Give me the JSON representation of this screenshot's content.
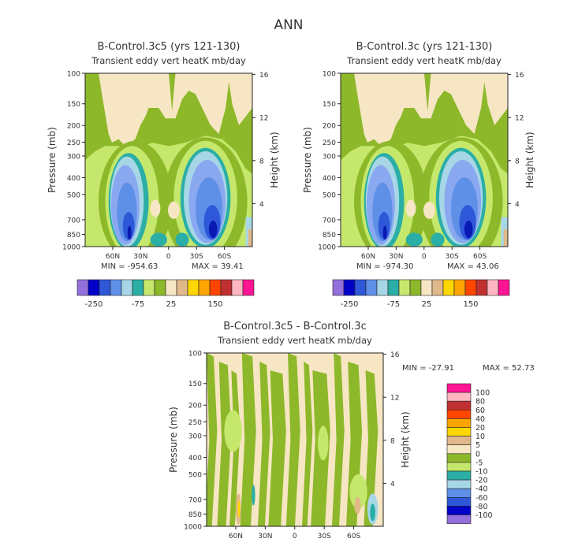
{
  "page_title": "ANN",
  "colors": {
    "olive": "#8db82a",
    "lightgreen": "#c5e86c",
    "cream": "#f7e6c4",
    "teal": "#2aaea6",
    "lightblue": "#a7d6e6",
    "medblue": "#5f90e8",
    "lavblue": "#8aa8f0",
    "blue": "#2e58d8",
    "navy": "#0a1ab4"
  },
  "chart_data": [
    {
      "id": "left",
      "type": "contour",
      "title": "B-Control.3c5 (yrs 121-130)",
      "subtitle": "Transient eddy vert heatK mb/day",
      "ylabel": "Pressure (mb)",
      "y2label": "Height (km)",
      "yticks": [
        "100",
        "150",
        "200",
        "250",
        "300",
        "400",
        "500",
        "700",
        "850",
        "1000"
      ],
      "y2ticks": [
        "16",
        "12",
        "8",
        "4"
      ],
      "xticks": [
        "60N",
        "30N",
        "0",
        "30S",
        "60S"
      ],
      "min_text": "MIN = -954.63",
      "max_text": "MAX = 39.41",
      "colorbar_labels": [
        "-250",
        "-75",
        "25",
        "150"
      ],
      "colorbar_colors": [
        "#9370db",
        "#0000c8",
        "#2e58d8",
        "#5f90e8",
        "#a7d6e6",
        "#2aaea6",
        "#c5e86c",
        "#8db82a",
        "#f7e6c4",
        "#e0b88a",
        "#ffd700",
        "#ffa500",
        "#ff4500",
        "#c03030",
        "#ffb6c1",
        "#ff1493"
      ]
    },
    {
      "id": "right",
      "type": "contour",
      "title": "B-Control.3c (yrs 121-130)",
      "subtitle": "Transient eddy vert heatK mb/day",
      "ylabel": "Pressure (mb)",
      "y2label": "Height (km)",
      "yticks": [
        "100",
        "150",
        "200",
        "250",
        "300",
        "400",
        "500",
        "700",
        "850",
        "1000"
      ],
      "y2ticks": [
        "16",
        "12",
        "8",
        "4"
      ],
      "xticks": [
        "60N",
        "30N",
        "0",
        "30S",
        "60S"
      ],
      "min_text": "MIN = -974.30",
      "max_text": "MAX = 43.06",
      "colorbar_labels": [
        "-250",
        "-75",
        "25",
        "150"
      ],
      "colorbar_colors": [
        "#9370db",
        "#0000c8",
        "#2e58d8",
        "#5f90e8",
        "#a7d6e6",
        "#2aaea6",
        "#c5e86c",
        "#8db82a",
        "#f7e6c4",
        "#e0b88a",
        "#ffd700",
        "#ffa500",
        "#ff4500",
        "#c03030",
        "#ffb6c1",
        "#ff1493"
      ]
    },
    {
      "id": "diff",
      "type": "contour",
      "title": "B-Control.3c5 - B-Control.3c",
      "subtitle": "Transient eddy vert heatK mb/day",
      "ylabel": "Pressure (mb)",
      "y2label": "Height (km)",
      "yticks": [
        "100",
        "150",
        "200",
        "250",
        "300",
        "400",
        "500",
        "700",
        "850",
        "1000"
      ],
      "y2ticks": [
        "16",
        "12",
        "8",
        "4"
      ],
      "xticks": [
        "60N",
        "30N",
        "0",
        "30S",
        "60S"
      ],
      "min_text": "MIN = -27.91",
      "max_text": "MAX = 52.73",
      "legend_labels": [
        "100",
        "80",
        "60",
        "40",
        "20",
        "10",
        "5",
        "0",
        "-5",
        "-10",
        "-20",
        "-40",
        "-60",
        "-80",
        "-100"
      ],
      "legend_colors": [
        "#ff1493",
        "#ffb6c1",
        "#c03030",
        "#ff4500",
        "#ffa500",
        "#ffd700",
        "#e0b88a",
        "#f7e6c4",
        "#8db82a",
        "#c5e86c",
        "#2aaea6",
        "#a7d6e6",
        "#5f90e8",
        "#2e58d8",
        "#0000c8",
        "#9370db"
      ]
    }
  ]
}
